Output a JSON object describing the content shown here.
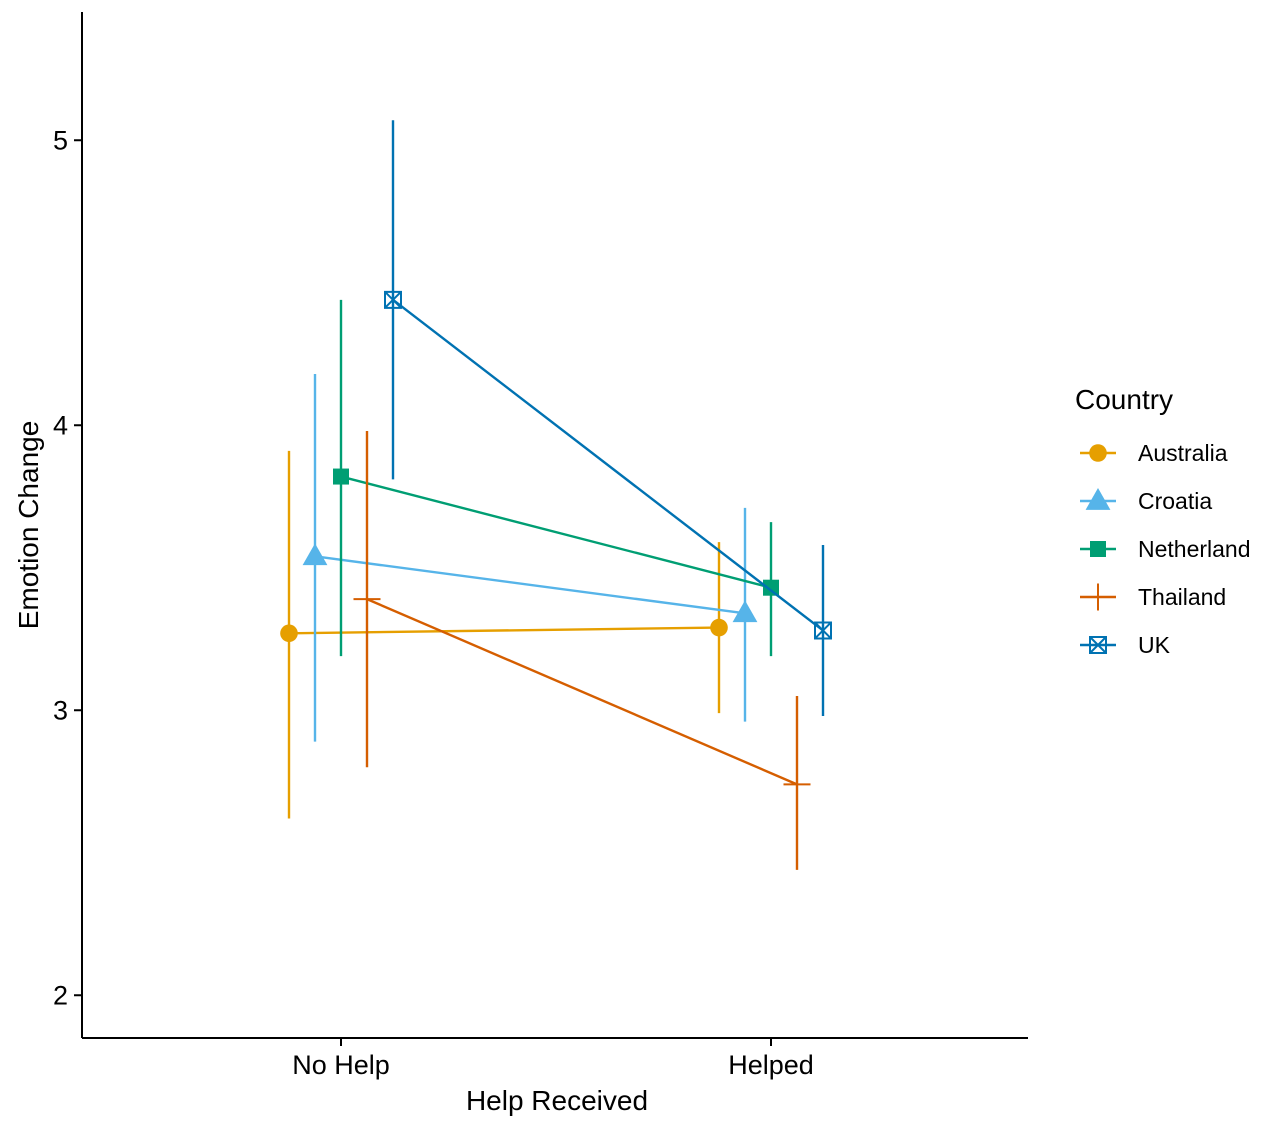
{
  "chart_data": {
    "type": "line",
    "title": "",
    "xlabel": "Help Received",
    "ylabel": "Emotion Change",
    "categories": [
      "No Help",
      "Helped"
    ],
    "ylim": [
      1.85,
      5.45
    ],
    "yticks": [
      2,
      3,
      4,
      5
    ],
    "grid": false,
    "legend": {
      "title": "Country",
      "position": "right"
    },
    "series": [
      {
        "name": "Australia",
        "color": "#E69F00",
        "marker": "circle",
        "values": [
          3.27,
          3.29
        ],
        "lower": [
          2.62,
          2.99
        ],
        "upper": [
          3.91,
          3.59
        ]
      },
      {
        "name": "Croatia",
        "color": "#56B4E9",
        "marker": "triangle",
        "values": [
          3.54,
          3.34
        ],
        "lower": [
          2.89,
          2.96
        ],
        "upper": [
          4.18,
          3.71
        ]
      },
      {
        "name": "Netherland",
        "color": "#009E73",
        "marker": "square",
        "values": [
          3.82,
          3.43
        ],
        "lower": [
          3.19,
          3.19
        ],
        "upper": [
          4.44,
          3.66
        ]
      },
      {
        "name": "Thailand",
        "color": "#D55E00",
        "marker": "plus",
        "values": [
          3.39,
          2.74
        ],
        "lower": [
          2.8,
          2.44
        ],
        "upper": [
          3.98,
          3.05
        ]
      },
      {
        "name": "UK",
        "color": "#0072B2",
        "marker": "square-cross",
        "values": [
          4.44,
          3.28
        ],
        "lower": [
          3.81,
          2.98
        ],
        "upper": [
          5.07,
          3.58
        ]
      }
    ]
  }
}
